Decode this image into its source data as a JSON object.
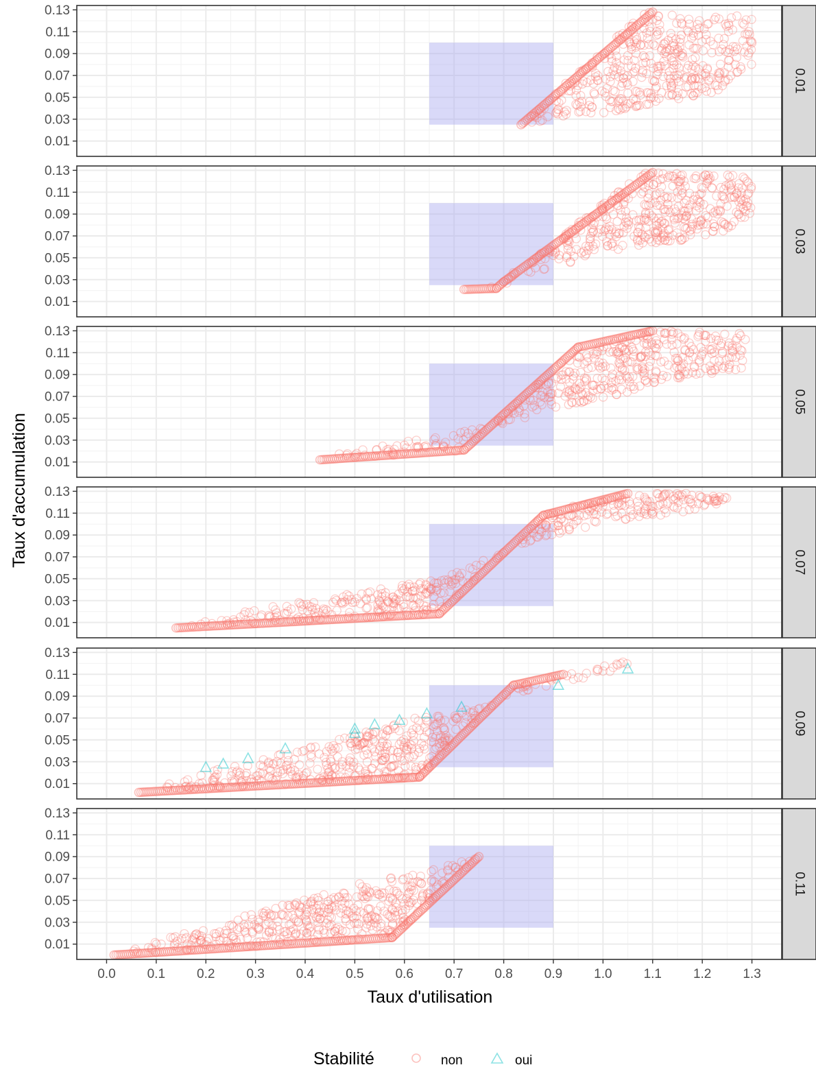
{
  "chart_data": {
    "type": "scatter",
    "xlabel": "Taux d'utilisation",
    "ylabel": "Taux d'accumulation",
    "xlim": [
      -0.06,
      1.36
    ],
    "ylim": [
      -0.004,
      0.134
    ],
    "x_ticks": [
      "0.0",
      "0.1",
      "0.2",
      "0.3",
      "0.4",
      "0.5",
      "0.6",
      "0.7",
      "0.8",
      "0.9",
      "1.0",
      "1.1",
      "1.2",
      "1.3"
    ],
    "y_ticks": [
      "0.01",
      "0.03",
      "0.05",
      "0.07",
      "0.09",
      "0.11",
      "0.13"
    ],
    "grid": true,
    "facet_by": "row",
    "highlight_rect": {
      "x": [
        0.65,
        0.9
      ],
      "y": [
        0.025,
        0.1
      ],
      "color": "#aaaaf0"
    },
    "legend": {
      "title": "Stabilité",
      "position": "bottom",
      "entries": [
        {
          "label": "non",
          "shape": "circle",
          "color": "#f8766d"
        },
        {
          "label": "oui",
          "shape": "triangle",
          "color": "#00bfc4"
        }
      ]
    },
    "panels": [
      {
        "strip": "0.01",
        "non_envelope": [
          [
            0.835,
            0.025
          ],
          [
            1.08,
            0.128
          ],
          [
            1.3,
            0.125
          ],
          [
            1.3,
            0.08
          ],
          [
            1.23,
            0.055
          ],
          [
            1.0,
            0.035
          ],
          [
            0.9,
            0.03
          ],
          [
            0.835,
            0.025
          ]
        ],
        "non_spine": [
          [
            0.835,
            0.025
          ],
          [
            1.1,
            0.128
          ]
        ],
        "oui_points": []
      },
      {
        "strip": "0.03",
        "non_envelope": [
          [
            0.72,
            0.02
          ],
          [
            0.79,
            0.022
          ],
          [
            0.8,
            0.03
          ],
          [
            1.08,
            0.128
          ],
          [
            1.3,
            0.125
          ],
          [
            1.3,
            0.08
          ],
          [
            1.15,
            0.065
          ],
          [
            1.0,
            0.055
          ],
          [
            0.9,
            0.04
          ],
          [
            0.8,
            0.025
          ],
          [
            0.72,
            0.02
          ]
        ],
        "non_spine": [
          [
            0.72,
            0.021
          ],
          [
            0.785,
            0.022
          ],
          [
            0.8,
            0.028
          ],
          [
            1.1,
            0.128
          ]
        ],
        "oui_points": []
      },
      {
        "strip": "0.05",
        "non_envelope": [
          [
            0.43,
            0.012
          ],
          [
            0.72,
            0.02
          ],
          [
            0.95,
            0.115
          ],
          [
            1.1,
            0.13
          ],
          [
            1.29,
            0.128
          ],
          [
            1.28,
            0.095
          ],
          [
            1.2,
            0.09
          ],
          [
            1.1,
            0.08
          ],
          [
            1.0,
            0.068
          ],
          [
            0.9,
            0.058
          ],
          [
            0.8,
            0.045
          ],
          [
            0.65,
            0.032
          ],
          [
            0.5,
            0.022
          ],
          [
            0.43,
            0.012
          ]
        ],
        "non_spine": [
          [
            0.43,
            0.012
          ],
          [
            0.72,
            0.021
          ],
          [
            0.95,
            0.115
          ],
          [
            1.1,
            0.13
          ]
        ],
        "oui_points": []
      },
      {
        "strip": "0.07",
        "non_envelope": [
          [
            0.14,
            0.005
          ],
          [
            0.67,
            0.018
          ],
          [
            0.88,
            0.108
          ],
          [
            1.0,
            0.125
          ],
          [
            1.15,
            0.13
          ],
          [
            1.28,
            0.123
          ],
          [
            1.15,
            0.11
          ],
          [
            1.0,
            0.1
          ],
          [
            0.9,
            0.09
          ],
          [
            0.8,
            0.075
          ],
          [
            0.7,
            0.055
          ],
          [
            0.6,
            0.045
          ],
          [
            0.5,
            0.037
          ],
          [
            0.3,
            0.022
          ],
          [
            0.14,
            0.005
          ]
        ],
        "non_spine": [
          [
            0.14,
            0.005
          ],
          [
            0.67,
            0.018
          ],
          [
            0.88,
            0.108
          ],
          [
            1.05,
            0.128
          ]
        ],
        "oui_points": []
      },
      {
        "strip": "0.09",
        "non_envelope": [
          [
            0.065,
            0.002
          ],
          [
            0.63,
            0.016
          ],
          [
            0.82,
            0.1
          ],
          [
            0.92,
            0.11
          ],
          [
            1.08,
            0.125
          ],
          [
            1.0,
            0.11
          ],
          [
            0.9,
            0.1
          ],
          [
            0.8,
            0.09
          ],
          [
            0.7,
            0.075
          ],
          [
            0.62,
            0.07
          ],
          [
            0.5,
            0.055
          ],
          [
            0.4,
            0.043
          ],
          [
            0.3,
            0.032
          ],
          [
            0.2,
            0.02
          ],
          [
            0.065,
            0.002
          ]
        ],
        "non_spine": [
          [
            0.065,
            0.002
          ],
          [
            0.63,
            0.016
          ],
          [
            0.82,
            0.1
          ],
          [
            0.92,
            0.11
          ]
        ],
        "oui_points": [
          [
            0.2,
            0.025
          ],
          [
            0.235,
            0.028
          ],
          [
            0.285,
            0.033
          ],
          [
            0.36,
            0.042
          ],
          [
            0.5,
            0.056
          ],
          [
            0.5,
            0.06
          ],
          [
            0.54,
            0.064
          ],
          [
            0.59,
            0.068
          ],
          [
            0.645,
            0.074
          ],
          [
            0.715,
            0.08
          ],
          [
            0.91,
            0.1
          ],
          [
            1.05,
            0.115
          ]
        ]
      },
      {
        "strip": "0.11",
        "non_envelope": [
          [
            0.015,
            0.0
          ],
          [
            0.575,
            0.016
          ],
          [
            0.75,
            0.09
          ],
          [
            0.65,
            0.077
          ],
          [
            0.55,
            0.07
          ],
          [
            0.45,
            0.058
          ],
          [
            0.35,
            0.045
          ],
          [
            0.25,
            0.033
          ],
          [
            0.15,
            0.02
          ],
          [
            0.1,
            0.012
          ],
          [
            0.015,
            0.0
          ]
        ],
        "non_spine": [
          [
            0.015,
            0.0
          ],
          [
            0.575,
            0.016
          ],
          [
            0.75,
            0.09
          ]
        ],
        "oui_points": []
      }
    ]
  }
}
